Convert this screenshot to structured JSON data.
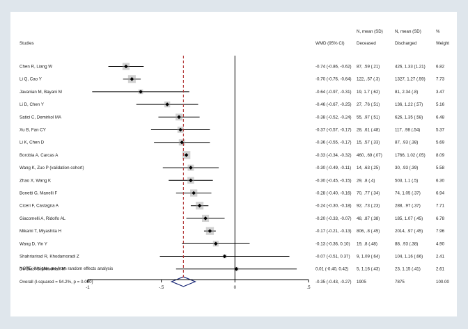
{
  "chart_data": {
    "type": "forest",
    "header": {
      "studies": "Studies",
      "effect": "WMD (95% CI)",
      "col_n1_top": "N, mean (SD)",
      "col_n1": "Deceased",
      "col_n2_top": "N, mean (SD)",
      "col_n2": "Discharged",
      "col_w_top": "%",
      "col_w": "Weight"
    },
    "xlim": [
      -1.0,
      0.5
    ],
    "reference_line": 0,
    "pooled_line": -0.35,
    "ticks": [
      {
        "value": -1.0,
        "label": "-1"
      },
      {
        "value": -0.5,
        "label": "-.5"
      },
      {
        "value": 0.0,
        "label": "0"
      },
      {
        "value": 0.5,
        "label": ".5"
      }
    ],
    "studies": [
      {
        "label": "Chen R, Liang W",
        "est": -0.74,
        "lo": -0.86,
        "hi": -0.62,
        "effect": "-0.74 (-0.86, -0.62)",
        "dec": "87, .59 (.21)",
        "dis": "426, 1.33 (1.21)",
        "weight": "6.82",
        "w": 6.82
      },
      {
        "label": "Li Q, Cao Y",
        "est": -0.7,
        "lo": -0.76,
        "hi": -0.64,
        "effect": "-0.70 (-0.76, -0.64)",
        "dec": "122, .57 (.3)",
        "dis": "1327, 1.27 (.59)",
        "weight": "7.73",
        "w": 7.73
      },
      {
        "label": "Javanian M, Bayani M",
        "est": -0.64,
        "lo": -0.97,
        "hi": -0.31,
        "effect": "-0.64 (-0.97, -0.31)",
        "dec": "19, 1.7 (.62)",
        "dis": "81, 2.34 (.8)",
        "weight": "3.47",
        "w": 3.47
      },
      {
        "label": "Li D, Chen Y",
        "est": -0.46,
        "lo": -0.67,
        "hi": -0.25,
        "effect": "-0.46 (-0.67, -0.25)",
        "dec": "27, .76 (.51)",
        "dis": "136, 1.22 (.57)",
        "weight": "5.16",
        "w": 5.16
      },
      {
        "label": "Satici C, Demirkol MA",
        "est": -0.38,
        "lo": -0.52,
        "hi": -0.24,
        "effect": "-0.38 (-0.52, -0.24)",
        "dec": "55, .97 (.51)",
        "dis": "626, 1.35 (.58)",
        "weight": "6.48",
        "w": 6.48
      },
      {
        "label": "Xu B, Fan CY",
        "est": -0.37,
        "lo": -0.57,
        "hi": -0.17,
        "effect": "-0.37 (-0.57, -0.17)",
        "dec": "28, .61 (.48)",
        "dis": "117, .98 (.54)",
        "weight": "5.37",
        "w": 5.37
      },
      {
        "label": "Li K, Chen D",
        "est": -0.36,
        "lo": -0.55,
        "hi": -0.17,
        "effect": "-0.36 (-0.55, -0.17)",
        "dec": "15, .57 (.33)",
        "dis": "87, .93 (.38)",
        "weight": "5.69",
        "w": 5.69
      },
      {
        "label": "Borobia A, Carcas A",
        "est": -0.33,
        "lo": -0.34,
        "hi": -0.32,
        "effect": "-0.33 (-0.34, -0.32)",
        "dec": "460, .69 (.07)",
        "dis": "1766, 1.02 (.05)",
        "weight": "8.09",
        "w": 8.09
      },
      {
        "label": "Wang K, Zuo P (validation cohort)",
        "est": -0.3,
        "lo": -0.49,
        "hi": -0.11,
        "effect": "-0.30 (-0.49, -0.11)",
        "dec": "14, .63 (.25)",
        "dis": "30, .93 (.39)",
        "weight": "5.58",
        "w": 5.58
      },
      {
        "label": "Zhao X, Wang K",
        "est": -0.3,
        "lo": -0.45,
        "hi": -0.15,
        "effect": "-0.30 (-0.45, -0.15)",
        "dec": "29, .8 (.4)",
        "dis": "503, 1.1 (.5)",
        "weight": "6.30",
        "w": 6.3
      },
      {
        "label": "Bonetti G, Manelli F",
        "est": -0.28,
        "lo": -0.4,
        "hi": -0.16,
        "effect": "-0.28 (-0.40, -0.16)",
        "dec": "70, .77 (.34)",
        "dis": "74, 1.05 (.37)",
        "weight": "6.94",
        "w": 6.94
      },
      {
        "label": "Ciceri F, Castagna A",
        "est": -0.24,
        "lo": -0.3,
        "hi": -0.18,
        "effect": "-0.24 (-0.30, -0.18)",
        "dec": "92, .73 (.23)",
        "dis": "288, .97 (.37)",
        "weight": "7.71",
        "w": 7.71
      },
      {
        "label": "Giacomelli A, Ridolfo AL",
        "est": -0.2,
        "lo": -0.33,
        "hi": -0.07,
        "effect": "-0.20 (-0.33, -0.07)",
        "dec": "48, .87 (.38)",
        "dis": "185, 1.07 (.45)",
        "weight": "6.78",
        "w": 6.78
      },
      {
        "label": "Mikami T, Miyashita H",
        "est": -0.17,
        "lo": -0.21,
        "hi": -0.13,
        "effect": "-0.17 (-0.21, -0.13)",
        "dec": "806, .8 (.45)",
        "dis": "2014, .97 (.45)",
        "weight": "7.96",
        "w": 7.96
      },
      {
        "label": "Wang D, Yin Y",
        "est": -0.13,
        "lo": -0.36,
        "hi": 0.1,
        "effect": "-0.13 (-0.36, 0.10)",
        "dec": "19, .8 (.48)",
        "dis": "88, .93 (.38)",
        "weight": "4.90",
        "w": 4.9
      },
      {
        "label": "Shahriarirad R, Khodamoradi Z",
        "est": -0.07,
        "lo": -0.51,
        "hi": 0.37,
        "effect": "-0.07 (-0.51, 0.37)",
        "dec": "9, 1.09 (.64)",
        "dis": "104, 1.16 (.66)",
        "weight": "2.41",
        "w": 2.41
      },
      {
        "label": "De Biasi S, Meschiari M",
        "est": 0.01,
        "lo": -0.4,
        "hi": 0.42,
        "effect": "0.01 (-0.40, 0.42)",
        "dec": "5, 1.16 (.43)",
        "dis": "23, 1.15 (.41)",
        "weight": "2.61",
        "w": 2.61
      }
    ],
    "overall": {
      "label": "Overall  (I-squared = 94.2%, p = 0.000)",
      "est": -0.35,
      "lo": -0.43,
      "hi": -0.27,
      "effect": "-0.35 (-0.43, -0.27)",
      "dec": "1905",
      "dis": "7875",
      "weight": "100.00"
    },
    "note": "NOTE: Weights are from random effects analysis",
    "colors": {
      "background": "#dfe6ec",
      "panel": "#ffffff",
      "ink": "#000000",
      "pooled_line": "#b03030",
      "diamond": "#1c2a78",
      "square": "#9b9b9b"
    }
  }
}
